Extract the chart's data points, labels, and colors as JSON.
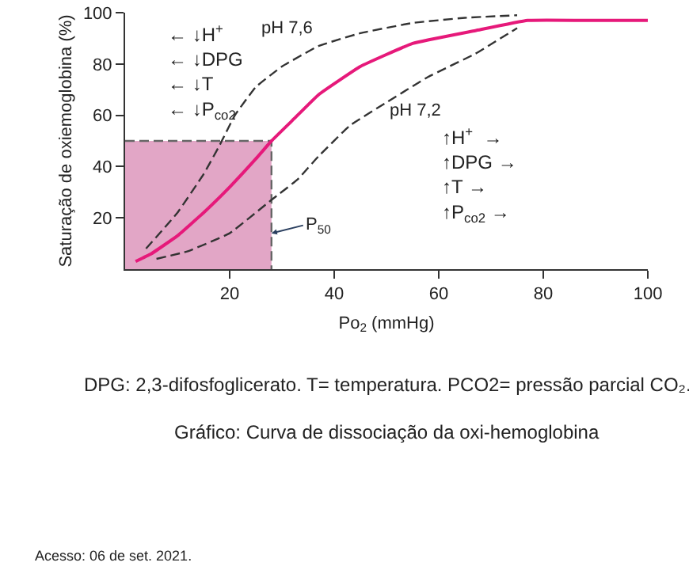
{
  "chart_data": {
    "type": "line",
    "xlabel": "Po$_{2}$ (mmHg)",
    "ylabel": "Saturação de oxiemoglobina (%)",
    "xlim": [
      0,
      100
    ],
    "ylim": [
      0,
      100
    ],
    "xticks": [
      20,
      40,
      60,
      80,
      100
    ],
    "yticks": [
      20,
      40,
      60,
      80,
      100
    ],
    "marker": "none",
    "series": [
      {
        "type": "area",
        "color": "#e2a6c6",
        "line_style": "dashed",
        "x": [
          0,
          28,
          28
        ],
        "values": [
          50,
          50,
          0
        ]
      },
      {
        "color": "#333333",
        "line_style": "dashed",
        "x": [
          4,
          10,
          15,
          18,
          21,
          25,
          30,
          37,
          45,
          55,
          65,
          75
        ],
        "values": [
          8,
          22,
          37,
          48,
          60,
          71,
          79,
          87,
          92,
          96,
          98,
          99
        ]
      },
      {
        "color": "#333333",
        "line_style": "dashed",
        "x": [
          6,
          12,
          20,
          28,
          33,
          37,
          43,
          50,
          58,
          67,
          75
        ],
        "values": [
          4,
          7,
          14,
          27,
          35,
          44,
          56,
          65,
          75,
          84,
          94
        ]
      },
      {
        "color": "#e6197a",
        "line_style": "solid",
        "x": [
          2,
          5,
          10,
          15,
          20,
          25,
          28,
          32,
          37,
          45,
          55,
          67,
          77,
          90,
          100
        ],
        "values": [
          3,
          6,
          13,
          22,
          32,
          43,
          50,
          58,
          68,
          79,
          88,
          93,
          97,
          97,
          97
        ]
      }
    ],
    "annotations": [
      "pH 7,6",
      "pH 7,2",
      {
        "text": "P$_{50}$",
        "x": 28,
        "y": 14
      },
      "← ↓H$^{+}$\n← ↓DPG\n← ↓T\n← ↓P$_{co2}$",
      "↑H$^{+}$  →\n↑DPG →\n↑T →\n↑P$_{co2}$ →",
      "DPG: 2,3-difosfoglicerato. T= temperatura. PCO2= pressão parcial CO₂.",
      "Gráfico: Curva de dissociação da oxi-hemoglobina",
      "Acesso: 06 de set. 2021."
    ]
  }
}
